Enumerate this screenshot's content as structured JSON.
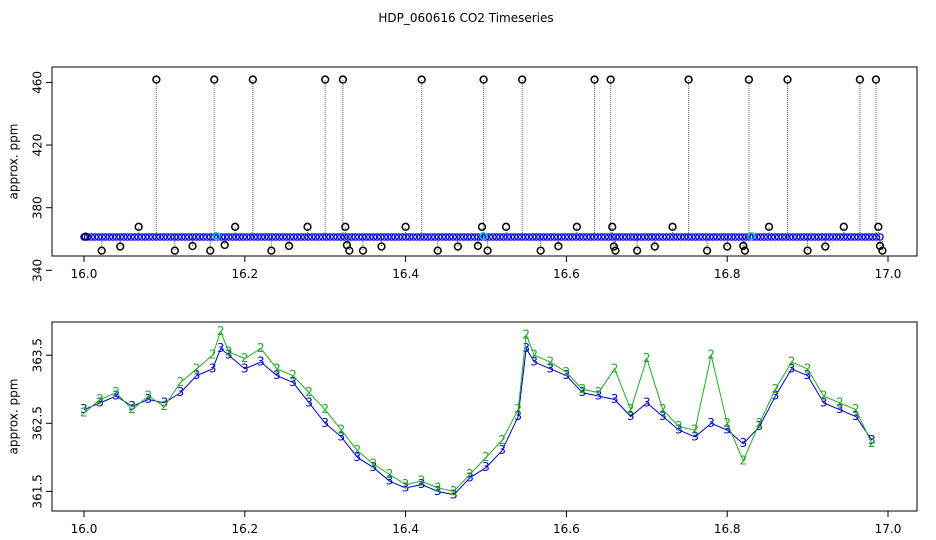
{
  "title": "HDP_060616  CO2 Timeseries",
  "chart_data": [
    {
      "type": "scatter",
      "panel": "top",
      "ylabel": "approx. ppm",
      "xlim": [
        16.0,
        17.0
      ],
      "ylim": [
        353,
        466
      ],
      "xticks": [
        "16.0",
        "16.2",
        "16.4",
        "16.6",
        "16.8",
        "17.0"
      ],
      "yticks": [
        "340",
        "380",
        "420",
        "460"
      ],
      "baseline_ppm": 361.3,
      "baseline_start": 16.0,
      "baseline_end": 16.99,
      "series": [
        {
          "marker": "circle",
          "color": "#000000",
          "points": [
            [
              16.002,
              361.5
            ],
            [
              16.022,
              352.6
            ],
            [
              16.045,
              355.2
            ],
            [
              16.068,
              367.8
            ],
            [
              16.09,
              461.8
            ],
            [
              16.113,
              352.6
            ],
            [
              16.135,
              355.5
            ],
            [
              16.157,
              352.6
            ],
            [
              16.162,
              461.8
            ],
            [
              16.175,
              356.2
            ],
            [
              16.188,
              367.8
            ],
            [
              16.21,
              461.8
            ],
            [
              16.233,
              352.6
            ],
            [
              16.255,
              355.6
            ],
            [
              16.278,
              367.8
            ],
            [
              16.3,
              461.8
            ],
            [
              16.322,
              461.8
            ],
            [
              16.325,
              367.8
            ],
            [
              16.327,
              356.1
            ],
            [
              16.33,
              352.6
            ],
            [
              16.347,
              352.6
            ],
            [
              16.37,
              355.2
            ],
            [
              16.4,
              367.8
            ],
            [
              16.42,
              461.8
            ],
            [
              16.44,
              352.6
            ],
            [
              16.465,
              355.2
            ],
            [
              16.49,
              355.6
            ],
            [
              16.495,
              367.8
            ],
            [
              16.497,
              461.8
            ],
            [
              16.502,
              352.6
            ],
            [
              16.525,
              367.8
            ],
            [
              16.545,
              461.8
            ],
            [
              16.568,
              352.6
            ],
            [
              16.59,
              355.4
            ],
            [
              16.613,
              367.8
            ],
            [
              16.635,
              461.8
            ],
            [
              16.655,
              461.8
            ],
            [
              16.657,
              367.8
            ],
            [
              16.659,
              355.2
            ],
            [
              16.661,
              352.6
            ],
            [
              16.688,
              352.6
            ],
            [
              16.71,
              355.2
            ],
            [
              16.732,
              367.8
            ],
            [
              16.752,
              461.8
            ],
            [
              16.775,
              352.6
            ],
            [
              16.8,
              355.2
            ],
            [
              16.82,
              355.6
            ],
            [
              16.822,
              352.6
            ],
            [
              16.827,
              461.8
            ],
            [
              16.852,
              367.8
            ],
            [
              16.875,
              461.8
            ],
            [
              16.9,
              352.6
            ],
            [
              16.922,
              355.2
            ],
            [
              16.945,
              367.8
            ],
            [
              16.965,
              461.8
            ],
            [
              16.985,
              461.8
            ],
            [
              16.988,
              367.8
            ],
            [
              16.99,
              355.6
            ],
            [
              16.993,
              352.6
            ]
          ]
        },
        {
          "marker": "circle",
          "color": "#00cccc",
          "points": [
            [
              16.165,
              361.8
            ],
            [
              16.497,
              361.8
            ],
            [
              16.83,
              361.8
            ]
          ]
        }
      ]
    },
    {
      "type": "scatter",
      "panel": "bottom",
      "ylabel": "approx. ppm",
      "xlim": [
        16.0,
        16.99
      ],
      "ylim": [
        361.3,
        363.9
      ],
      "xticks": [
        "16.0",
        "16.2",
        "16.4",
        "16.6",
        "16.8",
        "17.0"
      ],
      "yticks": [
        "361.5",
        "362.5",
        "363.5"
      ],
      "series": [
        {
          "marker": "3",
          "color": "#0000cc",
          "line": "#0000cc",
          "points": [
            [
              16.0,
              362.7
            ],
            [
              16.02,
              362.8
            ],
            [
              16.04,
              362.9
            ],
            [
              16.06,
              362.75
            ],
            [
              16.08,
              362.85
            ],
            [
              16.1,
              362.8
            ],
            [
              16.12,
              362.95
            ],
            [
              16.14,
              363.2
            ],
            [
              16.16,
              363.3
            ],
            [
              16.17,
              363.6
            ],
            [
              16.18,
              363.5
            ],
            [
              16.2,
              363.3
            ],
            [
              16.22,
              363.4
            ],
            [
              16.24,
              363.2
            ],
            [
              16.26,
              363.1
            ],
            [
              16.28,
              362.8
            ],
            [
              16.3,
              362.5
            ],
            [
              16.32,
              362.3
            ],
            [
              16.34,
              362.0
            ],
            [
              16.36,
              361.85
            ],
            [
              16.38,
              361.65
            ],
            [
              16.4,
              361.55
            ],
            [
              16.42,
              361.6
            ],
            [
              16.44,
              361.5
            ],
            [
              16.46,
              361.45
            ],
            [
              16.48,
              361.7
            ],
            [
              16.5,
              361.85
            ],
            [
              16.52,
              362.1
            ],
            [
              16.54,
              362.6
            ],
            [
              16.55,
              363.6
            ],
            [
              16.56,
              363.4
            ],
            [
              16.58,
              363.3
            ],
            [
              16.6,
              363.2
            ],
            [
              16.62,
              362.95
            ],
            [
              16.64,
              362.9
            ],
            [
              16.66,
              362.85
            ],
            [
              16.68,
              362.6
            ],
            [
              16.7,
              362.8
            ],
            [
              16.72,
              362.6
            ],
            [
              16.74,
              362.4
            ],
            [
              16.76,
              362.3
            ],
            [
              16.78,
              362.5
            ],
            [
              16.8,
              362.4
            ],
            [
              16.82,
              362.2
            ],
            [
              16.84,
              362.45
            ],
            [
              16.86,
              362.9
            ],
            [
              16.88,
              363.3
            ],
            [
              16.9,
              363.2
            ],
            [
              16.92,
              362.8
            ],
            [
              16.94,
              362.7
            ],
            [
              16.96,
              362.6
            ],
            [
              16.98,
              362.25
            ]
          ]
        },
        {
          "marker": "2",
          "color": "#22aa22",
          "line": "#22aa22",
          "points": [
            [
              16.0,
              362.65
            ],
            [
              16.02,
              362.85
            ],
            [
              16.04,
              362.95
            ],
            [
              16.06,
              362.7
            ],
            [
              16.08,
              362.9
            ],
            [
              16.1,
              362.75
            ],
            [
              16.12,
              363.1
            ],
            [
              16.14,
              363.3
            ],
            [
              16.16,
              363.5
            ],
            [
              16.17,
              363.85
            ],
            [
              16.18,
              363.55
            ],
            [
              16.2,
              363.45
            ],
            [
              16.22,
              363.6
            ],
            [
              16.24,
              363.3
            ],
            [
              16.26,
              363.2
            ],
            [
              16.28,
              362.95
            ],
            [
              16.3,
              362.7
            ],
            [
              16.32,
              362.4
            ],
            [
              16.34,
              362.1
            ],
            [
              16.36,
              361.9
            ],
            [
              16.38,
              361.75
            ],
            [
              16.4,
              361.6
            ],
            [
              16.42,
              361.65
            ],
            [
              16.44,
              361.55
            ],
            [
              16.46,
              361.5
            ],
            [
              16.48,
              361.75
            ],
            [
              16.5,
              362.0
            ],
            [
              16.52,
              362.25
            ],
            [
              16.54,
              362.7
            ],
            [
              16.55,
              363.8
            ],
            [
              16.56,
              363.5
            ],
            [
              16.58,
              363.4
            ],
            [
              16.6,
              363.25
            ],
            [
              16.62,
              363.0
            ],
            [
              16.64,
              362.95
            ],
            [
              16.66,
              363.3
            ],
            [
              16.68,
              362.7
            ],
            [
              16.7,
              363.45
            ],
            [
              16.72,
              362.7
            ],
            [
              16.74,
              362.45
            ],
            [
              16.76,
              362.4
            ],
            [
              16.78,
              363.5
            ],
            [
              16.8,
              362.5
            ],
            [
              16.82,
              361.95
            ],
            [
              16.84,
              362.5
            ],
            [
              16.86,
              363.0
            ],
            [
              16.88,
              363.4
            ],
            [
              16.9,
              363.3
            ],
            [
              16.92,
              362.9
            ],
            [
              16.94,
              362.8
            ],
            [
              16.96,
              362.7
            ],
            [
              16.98,
              362.2
            ]
          ]
        }
      ]
    }
  ]
}
